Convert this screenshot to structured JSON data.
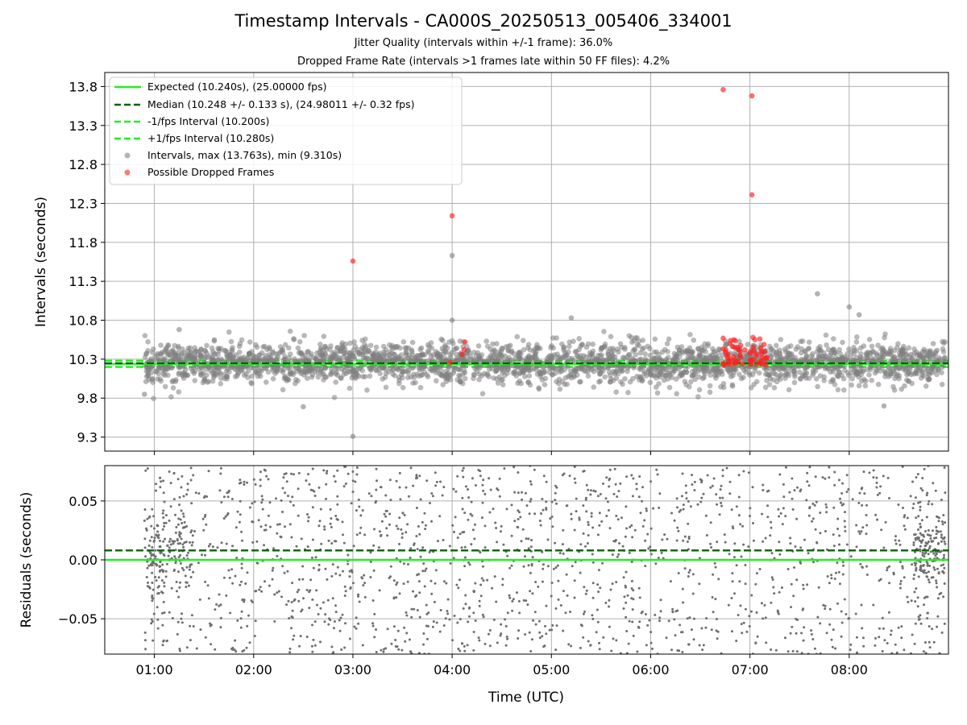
{
  "header": {
    "title": "Timestamp Intervals - CA000S_20250513_005406_334001",
    "subtitle_1": "Jitter Quality (intervals within +/-1 frame): 36.0%",
    "subtitle_2": "Dropped Frame Rate (intervals >1 frames late within 50 FF files): 4.2%"
  },
  "colors": {
    "expected": "#22ee22",
    "median": "#006400",
    "bounds": "#22ee22",
    "intervals": "#808080",
    "dropped": "#ff2020",
    "grid": "#b0b0b0"
  },
  "chart_data": [
    {
      "type": "scatter",
      "panel": "intervals",
      "ylabel": "Intervals (seconds)",
      "xlim": [
        0.5,
        9.0
      ],
      "ylim": [
        9.12,
        13.98
      ],
      "yticks": [
        9.3,
        9.8,
        10.3,
        10.8,
        11.3,
        11.8,
        12.3,
        12.8,
        13.3,
        13.8
      ],
      "ytick_labels": [
        "9.3",
        "9.8",
        "10.3",
        "10.8",
        "11.3",
        "11.8",
        "12.3",
        "12.8",
        "13.3",
        "13.8"
      ],
      "grid": true,
      "legend_position": "top-left",
      "legend": [
        {
          "label": "Expected (10.240s), (25.00000 fps)",
          "style": "solid-line",
          "color": "#22ee22"
        },
        {
          "label": "Median (10.248 +/- 0.133 s), (24.98011 +/- 0.32 fps)",
          "style": "dashed-line",
          "color": "#006400"
        },
        {
          "label": "-1/fps Interval (10.200s)",
          "style": "dashed-line",
          "color": "#22ee22"
        },
        {
          "label": "+1/fps Interval (10.280s)",
          "style": "dashed-line",
          "color": "#22ee22"
        },
        {
          "label": "Intervals, max (13.763s), min (9.310s)",
          "style": "marker",
          "color": "#808080"
        },
        {
          "label": "Possible Dropped Frames",
          "style": "marker",
          "color": "#ff2020"
        }
      ],
      "reference_lines": {
        "expected": 10.24,
        "median": 10.248,
        "lower": 10.2,
        "upper": 10.28
      },
      "series": [
        {
          "name": "Intervals, max (13.763s), min (9.310s)",
          "x_range": [
            0.9,
            8.97
          ],
          "center": 10.248,
          "spread_sd": 0.13,
          "sample_count": 2700,
          "notable_points": [
            [
              0.9,
              9.85
            ],
            [
              3.0,
              9.31
            ],
            [
              4.0,
              11.63
            ],
            [
              4.0,
              10.8
            ],
            [
              7.68,
              11.14
            ],
            [
              8.0,
              10.97
            ],
            [
              8.1,
              10.87
            ],
            [
              2.5,
              9.69
            ],
            [
              8.35,
              9.7
            ],
            [
              1.25,
              10.68
            ],
            [
              5.2,
              10.83
            ]
          ]
        },
        {
          "name": "Possible Dropped Frames",
          "points": [
            [
              3.0,
              11.56
            ],
            [
              4.0,
              12.14
            ],
            [
              4.13,
              10.52
            ],
            [
              4.12,
              10.42
            ],
            [
              4.1,
              10.36
            ],
            [
              6.73,
              13.76
            ],
            [
              7.02,
              13.68
            ],
            [
              7.02,
              12.41
            ],
            [
              3.98,
              10.26
            ],
            [
              6.73,
              10.57
            ],
            [
              6.8,
              10.5
            ],
            [
              6.85,
              10.45
            ],
            [
              6.9,
              10.35
            ],
            [
              7.05,
              10.55
            ],
            [
              7.1,
              10.56
            ],
            [
              6.95,
              10.42
            ],
            [
              7.03,
              10.58
            ],
            [
              7.15,
              10.3
            ]
          ],
          "cluster_1": {
            "x_range": [
              6.7,
              6.93
            ],
            "y_range": [
              10.23,
              10.55
            ],
            "count": 30
          },
          "cluster_2": {
            "x_range": [
              7.0,
              7.17
            ],
            "y_range": [
              10.23,
              10.5
            ],
            "count": 26
          }
        }
      ]
    },
    {
      "type": "scatter",
      "panel": "residuals",
      "xlabel": "Time (UTC)",
      "ylabel": "Residuals (seconds)",
      "xlim": [
        0.5,
        9.0
      ],
      "ylim": [
        -0.08,
        0.08
      ],
      "xticks": [
        1,
        2,
        3,
        4,
        5,
        6,
        7,
        8
      ],
      "xtick_labels": [
        "01:00",
        "02:00",
        "03:00",
        "04:00",
        "05:00",
        "06:00",
        "07:00",
        "08:00"
      ],
      "yticks": [
        -0.05,
        0,
        0.05
      ],
      "ytick_labels": [
        "−0.05",
        "0.00",
        "0.05"
      ],
      "grid": true,
      "reference_lines": {
        "zero": 0.0,
        "median_offset": 0.008
      },
      "series": [
        {
          "name": "Residuals",
          "x_range": [
            0.9,
            8.97
          ],
          "y_range": [
            -0.08,
            0.08
          ],
          "sample_count": 1700,
          "dense_clusters": [
            {
              "x_range": [
                0.9,
                1.4
              ],
              "y_center": 0.01
            },
            {
              "x_range": [
                8.65,
                8.97
              ],
              "y_center": 0.005
            }
          ]
        }
      ]
    }
  ]
}
